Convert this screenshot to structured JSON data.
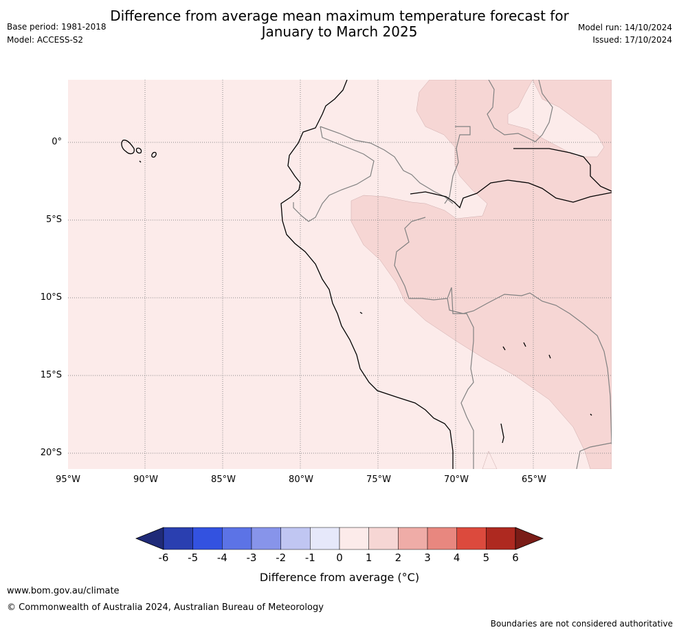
{
  "header": {
    "title_line1": "Difference from average mean maximum temperature forecast for",
    "title_line2": "January to March 2025",
    "base_period": "Base period: 1981-2018",
    "model": "Model: ACCESS-S2",
    "model_run": "Model run: 14/10/2024",
    "issued": "Issued: 17/10/2024"
  },
  "map": {
    "lat_labels": [
      "0°",
      "5°S",
      "10°S",
      "15°S",
      "20°S"
    ],
    "lon_labels": [
      "95°W",
      "90°W",
      "85°W",
      "80°W",
      "75°W",
      "70°W",
      "65°W"
    ],
    "fill_colors": {
      "class_0_1": "#fcebea",
      "class_1_2": "#f6d6d4",
      "coastline": "#000000",
      "border": "#808080",
      "grid": "#8a8a8a"
    }
  },
  "colorbar": {
    "ticks": [
      "-6",
      "-5",
      "-4",
      "-3",
      "-2",
      "-1",
      "0",
      "1",
      "2",
      "3",
      "4",
      "5",
      "6"
    ],
    "colors": [
      "#1f2a78",
      "#2a3fb0",
      "#3352e0",
      "#5c73e6",
      "#8794ea",
      "#c0c6f2",
      "#e6e8fa",
      "#fcebea",
      "#f6d6d4",
      "#efaca7",
      "#e8877f",
      "#dc4a3d",
      "#ae2920",
      "#7a1c17"
    ],
    "label": "Difference from average (°C)"
  },
  "footer": {
    "website": "www.bom.gov.au/climate",
    "copyright": "© Commonwealth of Australia 2024, Australian Bureau of Meteorology",
    "disclaimer": "Boundaries are not considered authoritative"
  }
}
